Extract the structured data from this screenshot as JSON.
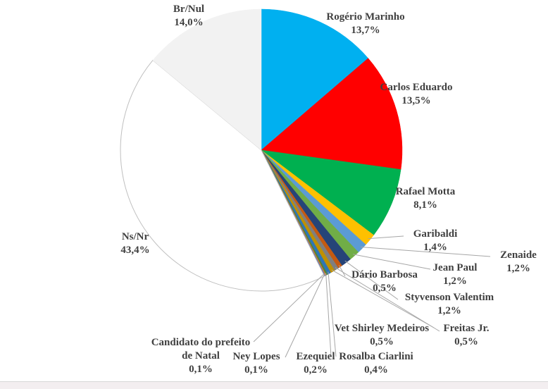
{
  "chart_data": {
    "type": "pie",
    "title": "",
    "unit": "%",
    "start": "top",
    "direction": "clockwise",
    "slices": [
      {
        "label": "Rogério Marinho",
        "value": 13.7,
        "value_label": "13,7%",
        "color": "#00b0f0"
      },
      {
        "label": "Carlos Eduardo",
        "value": 13.5,
        "value_label": "13,5%",
        "color": "#ff0000"
      },
      {
        "label": "Rafael Motta",
        "value": 8.1,
        "value_label": "8,1%",
        "color": "#00b050"
      },
      {
        "label": "Garibaldi",
        "value": 1.4,
        "value_label": "1,4%",
        "color": "#ffc000"
      },
      {
        "label": "Zenaide",
        "value": 1.2,
        "value_label": "1,2%",
        "color": "#5b9bd5"
      },
      {
        "label": "Jean Paul",
        "value": 1.2,
        "value_label": "1,2%",
        "color": "#70ad47"
      },
      {
        "label": "Styvenson Valentim",
        "value": 1.2,
        "value_label": "1,2%",
        "color": "#264478"
      },
      {
        "label": "Dário Barbosa",
        "value": 0.5,
        "value_label": "0,5%",
        "color": "#c55a11"
      },
      {
        "label": "Freitas Jr.",
        "value": 0.5,
        "value_label": "0,5%",
        "color": "#7f7f7f"
      },
      {
        "label": "Vet Shirley Medeiros",
        "value": 0.5,
        "value_label": "0,5%",
        "color": "#bf9000"
      },
      {
        "label": "Rosalba Ciarlini",
        "value": 0.4,
        "value_label": "0,4%",
        "color": "#2e75b6"
      },
      {
        "label": "Ezequiel",
        "value": 0.2,
        "value_label": "0,2%",
        "color": "#548235"
      },
      {
        "label": "Ney Lopes",
        "value": 0.1,
        "value_label": "0,1%",
        "color": "#ed7d31"
      },
      {
        "label": "Candidato do prefeito de Natal",
        "label_lines": [
          "Candidato do prefeito",
          "de Natal"
        ],
        "value": 0.1,
        "value_label": "0,1%",
        "color": "#4472c4"
      },
      {
        "label": "Ns/Nr",
        "value": 43.4,
        "value_label": "43,4%",
        "color": "#ffffff"
      },
      {
        "label": "Br/Nul",
        "value": 14.0,
        "value_label": "14,0%",
        "color": "#f2f2f2"
      }
    ]
  }
}
